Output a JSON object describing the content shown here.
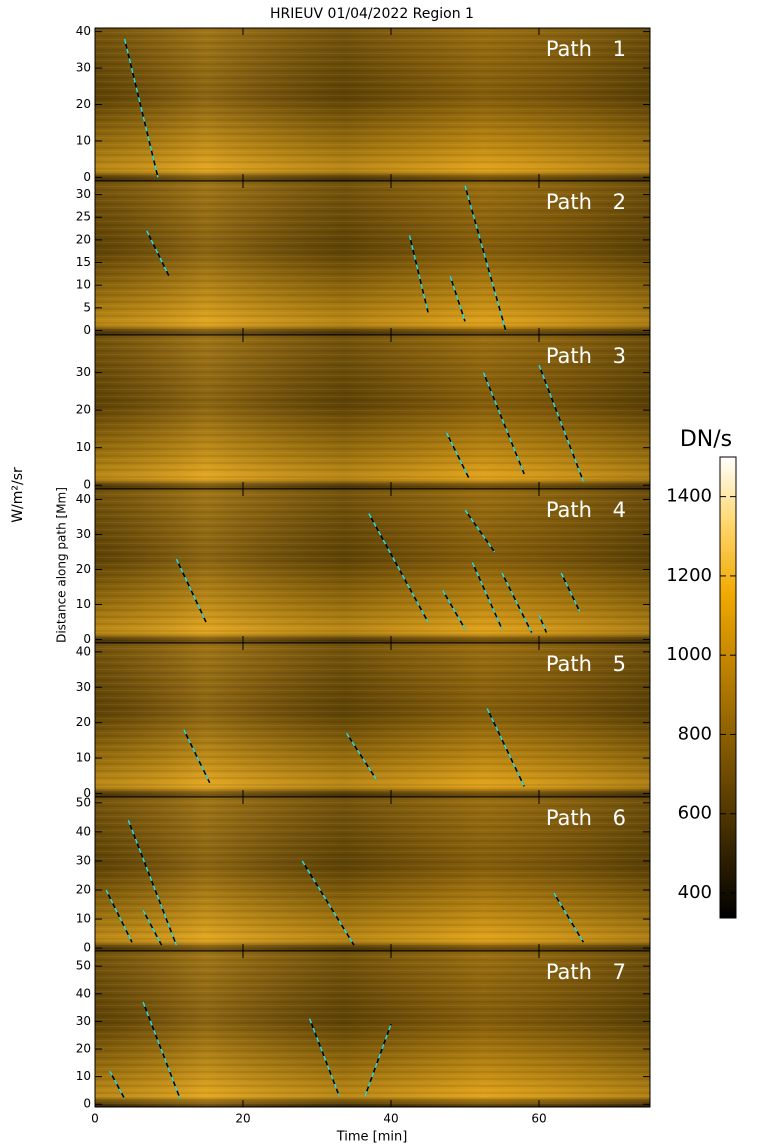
{
  "chart_data": {
    "type": "heatmap",
    "title": "HRIEUV 01/04/2022  Region 1",
    "xlabel": "Time [min]",
    "ylabel": "Distance along path [Mm]",
    "side_label": "W/m²/sr",
    "xlim": [
      0,
      75
    ],
    "xticks": [
      0,
      20,
      40,
      60
    ],
    "panels": [
      {
        "label": "Path 1",
        "ylim": [
          -1,
          41
        ],
        "yticks": [
          0,
          10,
          20,
          30,
          40
        ],
        "tracks": [
          {
            "x": [
              4,
              8.5
            ],
            "y": [
              38,
              0
            ]
          }
        ]
      },
      {
        "label": "Path 2",
        "ylim": [
          -1,
          33
        ],
        "yticks": [
          0,
          5,
          10,
          15,
          20,
          25,
          30
        ],
        "tracks": [
          {
            "x": [
              7,
              10
            ],
            "y": [
              22,
              12
            ]
          },
          {
            "x": [
              42.5,
              45
            ],
            "y": [
              21,
              4
            ]
          },
          {
            "x": [
              48,
              50
            ],
            "y": [
              12,
              2
            ]
          },
          {
            "x": [
              50,
              55.5
            ],
            "y": [
              32,
              0
            ]
          }
        ]
      },
      {
        "label": "Path 3",
        "ylim": [
          -1,
          40
        ],
        "yticks": [
          0,
          10,
          20,
          30
        ],
        "tracks": [
          {
            "x": [
              47.5,
              50.5
            ],
            "y": [
              14,
              2
            ]
          },
          {
            "x": [
              52.5,
              58
            ],
            "y": [
              30,
              3
            ]
          },
          {
            "x": [
              60,
              66
            ],
            "y": [
              32,
              1
            ]
          }
        ]
      },
      {
        "label": "Path 4",
        "ylim": [
          -1,
          43
        ],
        "yticks": [
          0,
          10,
          20,
          30,
          40
        ],
        "tracks": [
          {
            "x": [
              11,
              15
            ],
            "y": [
              23,
              5
            ]
          },
          {
            "x": [
              37,
              45
            ],
            "y": [
              36,
              5
            ]
          },
          {
            "x": [
              47,
              50
            ],
            "y": [
              14,
              3
            ]
          },
          {
            "x": [
              50,
              54
            ],
            "y": [
              37,
              25
            ]
          },
          {
            "x": [
              51,
              55
            ],
            "y": [
              22,
              3
            ]
          },
          {
            "x": [
              55,
              59
            ],
            "y": [
              19,
              2
            ]
          },
          {
            "x": [
              60,
              61
            ],
            "y": [
              7,
              2
            ]
          },
          {
            "x": [
              63,
              65.5
            ],
            "y": [
              19,
              8
            ]
          }
        ]
      },
      {
        "label": "Path 5",
        "ylim": [
          -1,
          42.5
        ],
        "yticks": [
          0,
          10,
          20,
          30,
          40
        ],
        "tracks": [
          {
            "x": [
              12,
              15.5
            ],
            "y": [
              18,
              3
            ]
          },
          {
            "x": [
              34,
              38
            ],
            "y": [
              17,
              4
            ]
          },
          {
            "x": [
              53,
              58
            ],
            "y": [
              24,
              2
            ]
          }
        ]
      },
      {
        "label": "Path 6",
        "ylim": [
          -1,
          52
        ],
        "yticks": [
          0,
          10,
          20,
          30,
          40,
          50
        ],
        "tracks": [
          {
            "x": [
              1.5,
              5
            ],
            "y": [
              20,
              2
            ]
          },
          {
            "x": [
              4.5,
              11
            ],
            "y": [
              44,
              1
            ]
          },
          {
            "x": [
              6.5,
              9
            ],
            "y": [
              13,
              1
            ]
          },
          {
            "x": [
              28,
              35
            ],
            "y": [
              30,
              1
            ]
          },
          {
            "x": [
              62,
              66
            ],
            "y": [
              19,
              2
            ]
          }
        ]
      },
      {
        "label": "Path 7",
        "ylim": [
          -1,
          55.5
        ],
        "yticks": [
          0,
          10,
          20,
          30,
          40,
          50
        ],
        "tracks": [
          {
            "x": [
              2,
              4
            ],
            "y": [
              12,
              2
            ]
          },
          {
            "x": [
              6.5,
              11.5
            ],
            "y": [
              37,
              2
            ]
          },
          {
            "x": [
              29,
              33
            ],
            "y": [
              31,
              3
            ]
          },
          {
            "x": [
              36.5,
              40
            ],
            "y": [
              3,
              29
            ]
          }
        ]
      }
    ],
    "colorbar": {
      "label": "DN/s",
      "lim": [
        337,
        1500
      ],
      "ticks": [
        400,
        600,
        800,
        1000,
        1200,
        1400
      ]
    }
  }
}
